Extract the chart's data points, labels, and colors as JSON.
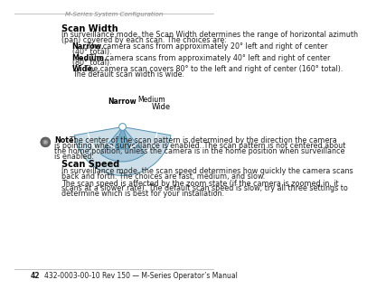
{
  "bg_color": "#ffffff",
  "header_text": "M-Series System Configuration",
  "footer_text": "42    432-0003-00-10 Rev 150 — M-Series Operator’s Manual",
  "title": "Scan Width",
  "para1_line1": "In surveillance mode, the Scan Width determines the range of horizontal azimuth",
  "para1_line2": "(pan) covered by each scan. The choices are:",
  "b1_bold": "Narrow.",
  "b1_l1": " The camera scans from approximately 20° left and right of center",
  "b1_l2": "(40° total).",
  "b2_bold": "Medium.",
  "b2_l1": " The camera scans from approximately 40° left and right of center",
  "b2_l2": "(80° total).",
  "b3_bold": "Wide.",
  "b3_l1": " The camera scan covers 80° to the left and right of center (160° total).",
  "b3_l2": "The default scan width is wide.",
  "note_bold": "Note:",
  "note_l1": "  The center of the scan pattern is determined by the direction the camera",
  "note_l2": "is pointing when surveillance is enabled. The scan pattern is not centered about",
  "note_l3": "the home position, unless the camera is in the home position when surveillance",
  "note_l4": "is enabled.",
  "ss_title": "Scan Speed",
  "ss_l1": "In surveillance mode, the scan speed determines how quickly the camera scans",
  "ss_l2": "back and forth. The choices are fast, medium, and slow.",
  "ss_l3": "The scan speed is affected by the zoom state (if the camera is zoomed in, it",
  "ss_l4": "scans at a slower rate). The default scan speed is slow; try all three settings to",
  "ss_l5": "determine which is best for your installation.",
  "fan_color_wide": "#ccdfe8",
  "fan_color_medium": "#a8c8dc",
  "fan_color_narrow": "#7aaec8",
  "fan_edge_color": "#5090b0",
  "fan_line_color": "#ffffff",
  "label_narrow": "Narrow",
  "label_medium": "Medium",
  "label_wide": "Wide",
  "lm": 75,
  "indent": 90,
  "fs_body": 5.8,
  "fs_title": 7.0,
  "fs_label": 5.5
}
